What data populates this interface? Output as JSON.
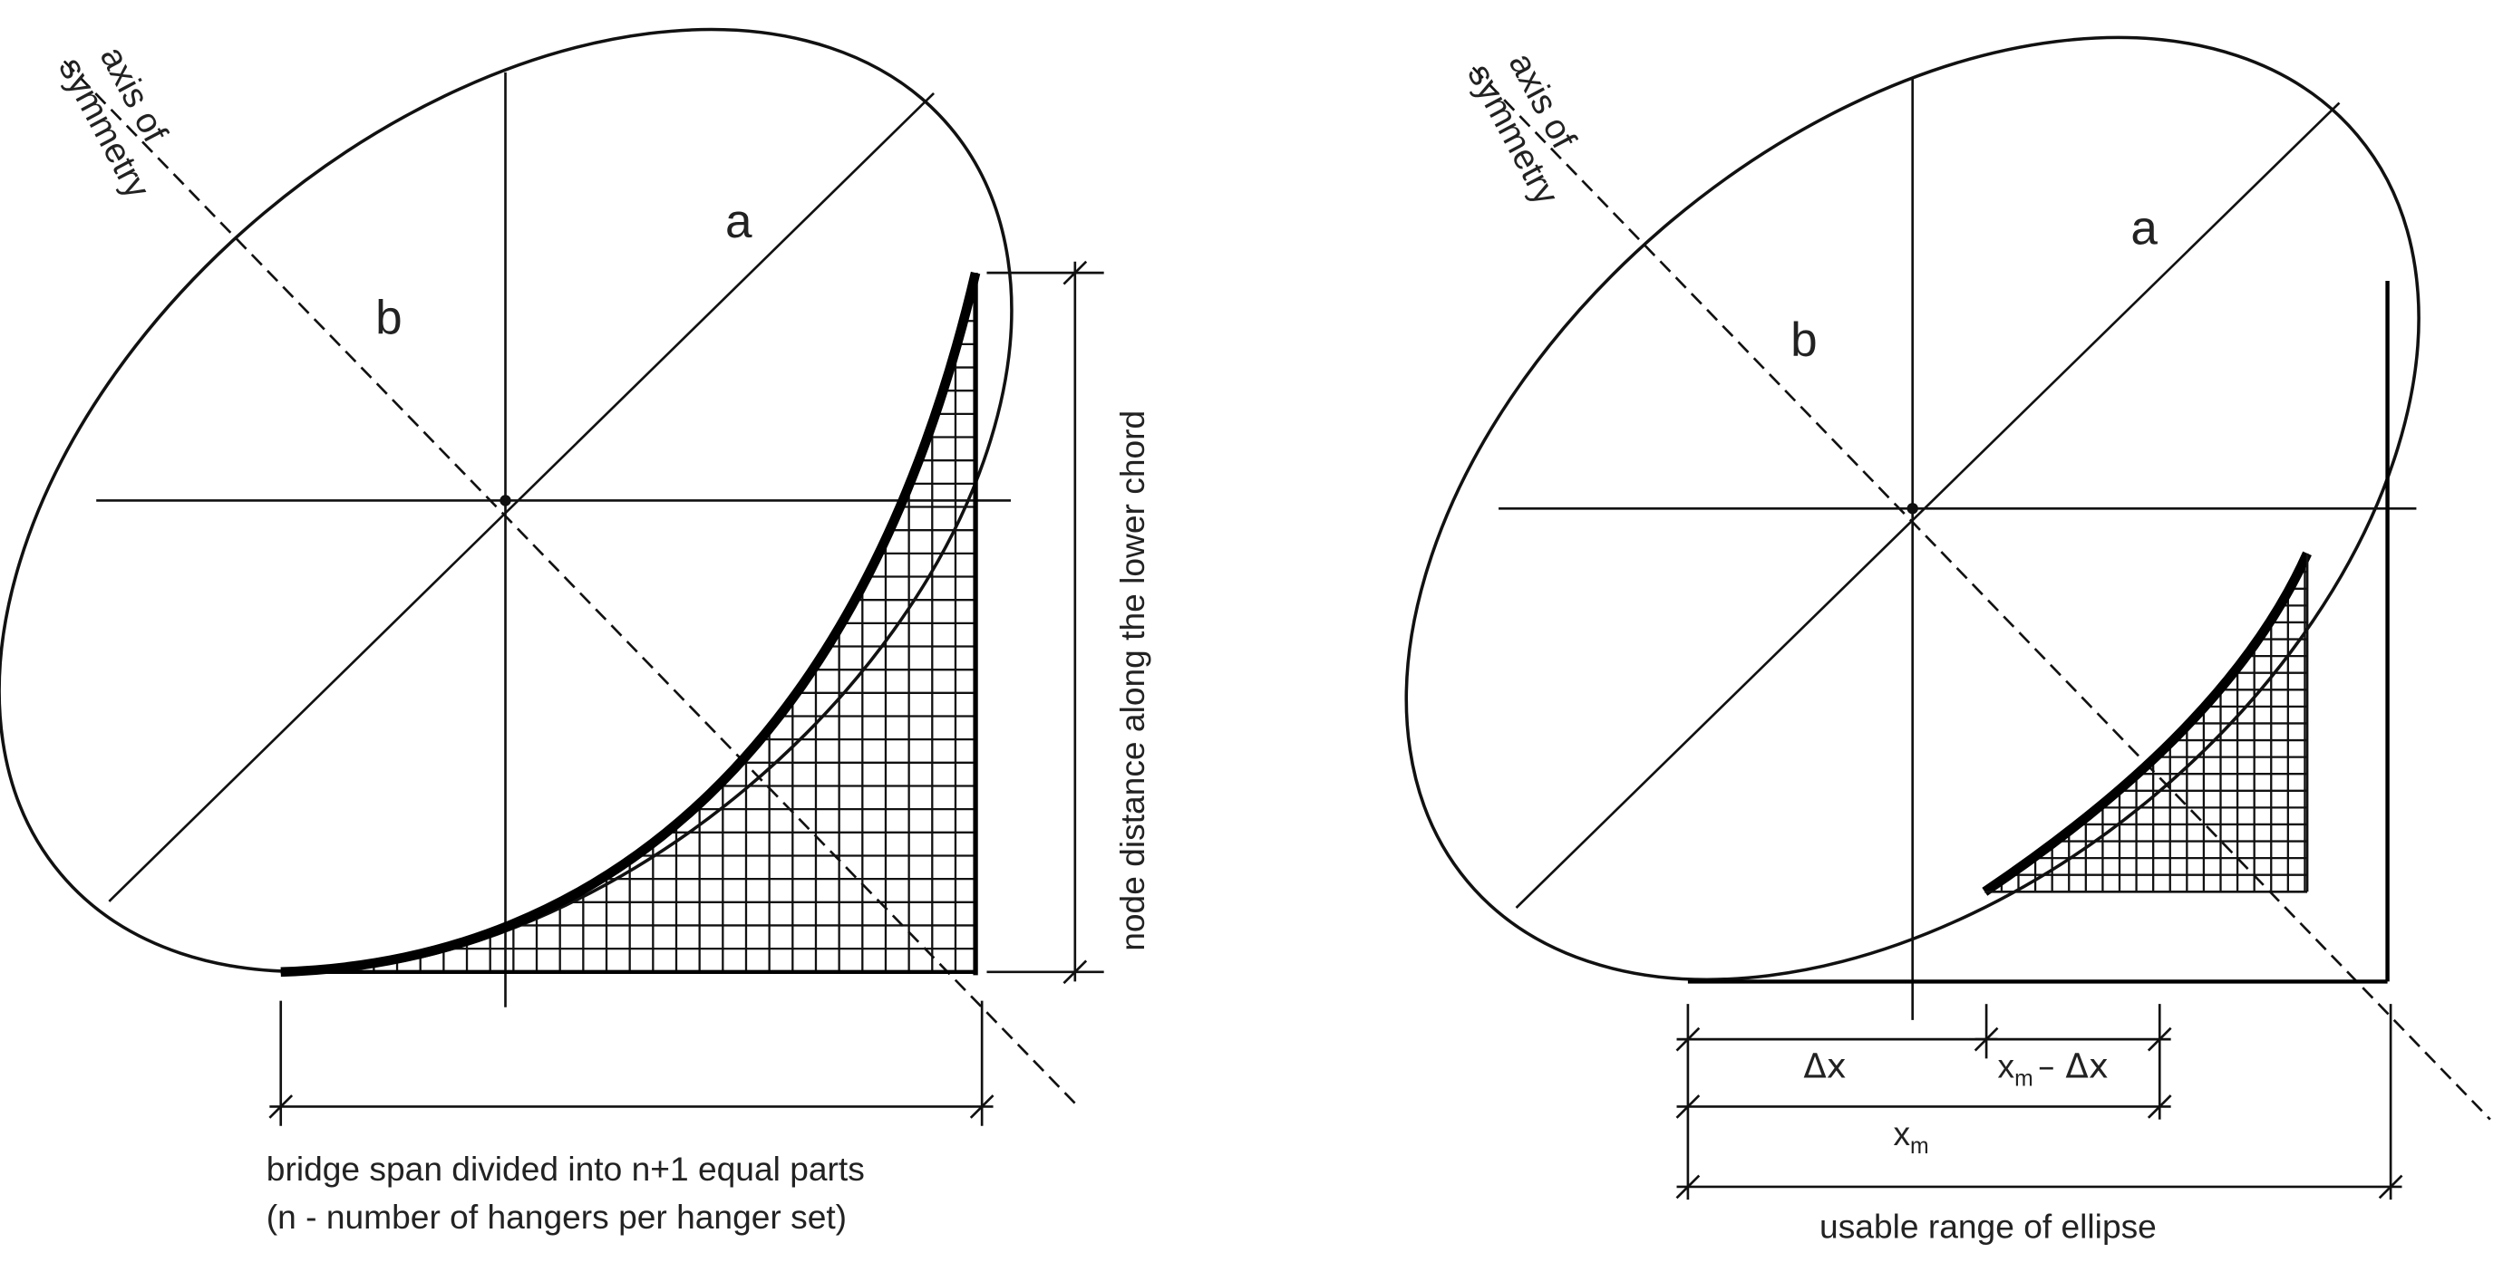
{
  "left_panel": {
    "axis_label_line1": "axis of",
    "axis_label_line2": "symmetry",
    "label_a": "a",
    "label_b": "b",
    "vertical_dimension_label": "node distance along the lower chord",
    "caption_line1": "bridge span divided into n+1 equal parts",
    "caption_line2": "(n - number of hangers per hanger set)"
  },
  "right_panel": {
    "axis_label_line1": "axis of",
    "axis_label_line2": "symmetry",
    "label_a": "a",
    "label_b": "b",
    "dim_delta_x": "Δx",
    "dim_xm_minus_dx_main": "x",
    "dim_xm_minus_dx_sub": "m",
    "dim_xm_minus_dx_rest": "– Δx",
    "dim_xm_main": "x",
    "dim_xm_sub": "m",
    "caption": "usable range of ellipse"
  }
}
